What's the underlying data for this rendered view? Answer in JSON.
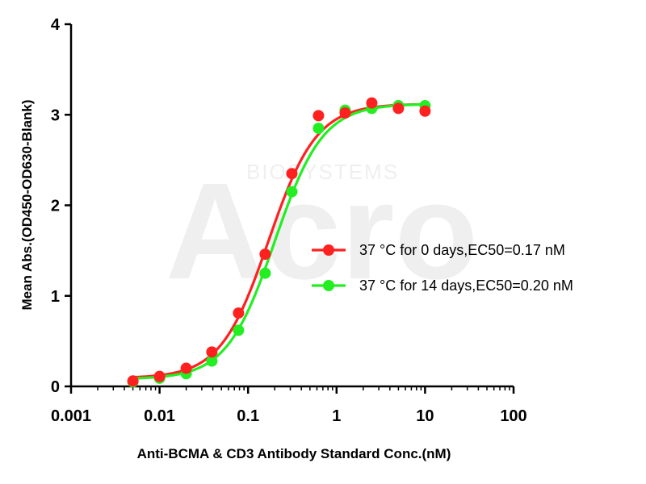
{
  "watermark": {
    "brand": "Acro",
    "sub": "BIOSYSTEMS"
  },
  "chart_data": {
    "type": "scatter",
    "xlabel": "Anti-BCMA & CD3 Antibody Standard Conc.(nM)",
    "ylabel": "Mean Abs.(OD450-OD630-Blank)",
    "xscale": "log",
    "xlim": [
      0.001,
      100
    ],
    "ylim": [
      0,
      4
    ],
    "x_ticks": [
      0.001,
      0.01,
      0.1,
      1,
      10,
      100
    ],
    "x_tick_labels": [
      "0.001",
      "0.01",
      "0.1",
      "1",
      "10",
      "100"
    ],
    "y_ticks": [
      0,
      1,
      2,
      3,
      4
    ],
    "y_tick_labels": [
      "0",
      "1",
      "2",
      "3",
      "4"
    ],
    "grid": false,
    "legend_position": "right",
    "series": [
      {
        "name": "37 °C for 0 days,EC50=0.17 nM",
        "color": "#ff2020",
        "x": [
          0.005,
          0.01,
          0.02,
          0.039,
          0.078,
          0.156,
          0.3125,
          0.625,
          1.25,
          2.5,
          5,
          10
        ],
        "y": [
          0.06,
          0.11,
          0.2,
          0.38,
          0.81,
          1.46,
          2.35,
          2.99,
          3.02,
          3.13,
          3.07,
          3.04
        ],
        "fit": {
          "bottom": 0.09,
          "top": 3.12,
          "ec50": 0.17,
          "hill": 1.6
        }
      },
      {
        "name": "37 °C for 14 days,EC50=0.20 nM",
        "color": "#22ee22",
        "x": [
          0.005,
          0.01,
          0.02,
          0.039,
          0.078,
          0.156,
          0.3125,
          0.625,
          1.25,
          2.5,
          5,
          10
        ],
        "y": [
          0.05,
          0.09,
          0.14,
          0.28,
          0.62,
          1.25,
          2.15,
          2.85,
          3.05,
          3.07,
          3.1,
          3.1
        ],
        "fit": {
          "bottom": 0.08,
          "top": 3.12,
          "ec50": 0.2,
          "hill": 1.6
        }
      }
    ]
  }
}
